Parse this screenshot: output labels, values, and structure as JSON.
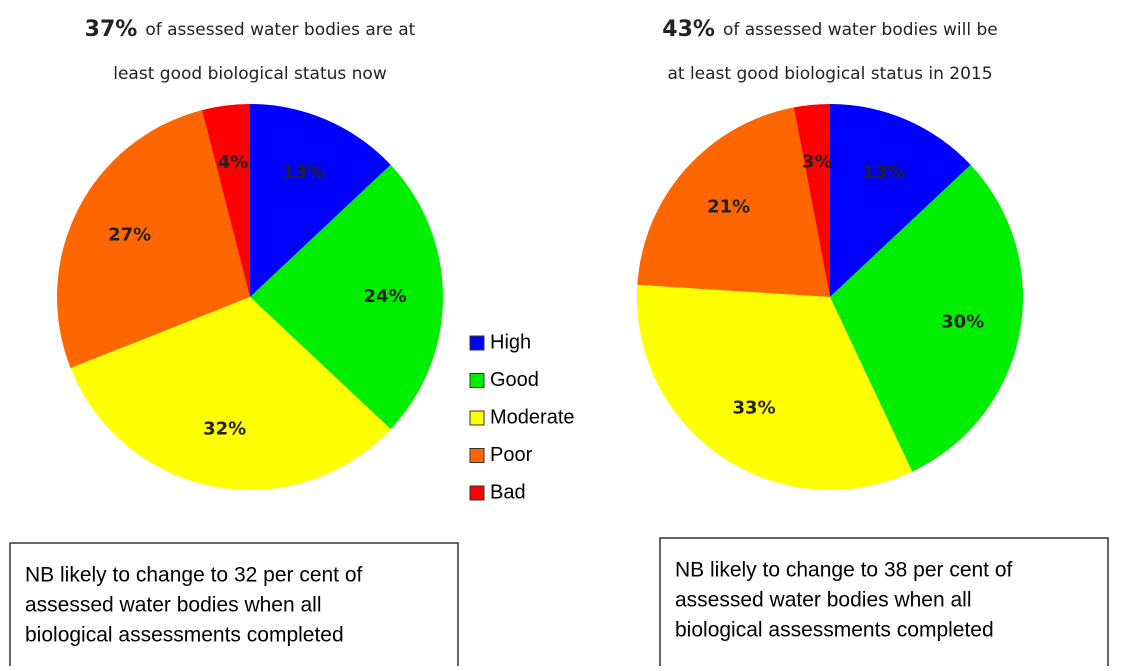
{
  "chart_data": [
    {
      "type": "pie",
      "title_lead": "37%",
      "title_lines": [
        "of assessed water bodies are at",
        "least good biological status now"
      ],
      "values": [
        13,
        24,
        32,
        27,
        4
      ],
      "value_labels": [
        "13%",
        "24%",
        "32%",
        "27%",
        "4%"
      ],
      "note": [
        "NB likely to change to 32 per cent of",
        "assessed water bodies when all",
        "biological assessments completed"
      ]
    },
    {
      "type": "pie",
      "title_lead": "43%",
      "title_lines": [
        "of assessed water bodies will be",
        "at least good biological status in 2015"
      ],
      "values": [
        13,
        30,
        33,
        21,
        3
      ],
      "value_labels": [
        "13%",
        "30%",
        "33%",
        "21%",
        "3%"
      ],
      "note": [
        "NB likely to change to 38 per cent of",
        "assessed water bodies when all",
        "biological assessments completed"
      ]
    }
  ],
  "legend": {
    "categories": [
      "High",
      "Good",
      "Moderate",
      "Poor",
      "Bad"
    ],
    "colors": [
      "#0000ff",
      "#00ee00",
      "#ffff00",
      "#ff6600",
      "#ff0000"
    ]
  }
}
